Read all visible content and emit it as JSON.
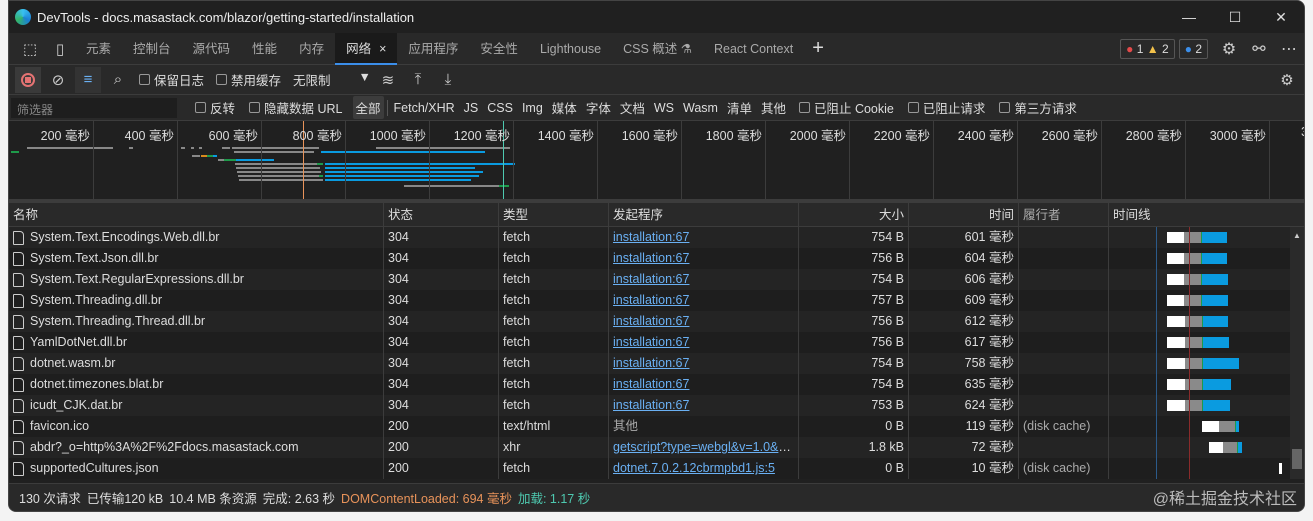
{
  "window": {
    "title": "DevTools - docs.masastack.com/blazor/getting-started/installation",
    "controls": [
      "—",
      "☐",
      "✕"
    ]
  },
  "tabs": [
    {
      "label": "元素"
    },
    {
      "label": "控制台"
    },
    {
      "label": "源代码"
    },
    {
      "label": "性能"
    },
    {
      "label": "内存"
    },
    {
      "label": "网络",
      "active": true
    },
    {
      "label": "应用程序"
    },
    {
      "label": "安全性"
    },
    {
      "label": "Lighthouse"
    },
    {
      "label": "CSS 概述 ⚗"
    },
    {
      "label": "React Context"
    }
  ],
  "tab_close": "×",
  "issues": {
    "errors": "1",
    "warnings": "2",
    "info": "2"
  },
  "toolbar": {
    "preserve_log": "保留日志",
    "disable_cache": "禁用缓存",
    "throttling": "无限制"
  },
  "filter": {
    "placeholder": "筛选器",
    "invert": "反转",
    "hide_data_urls": "隐藏数据 URL",
    "types": [
      "全部",
      "Fetch/XHR",
      "JS",
      "CSS",
      "Img",
      "媒体",
      "字体",
      "文档",
      "WS",
      "Wasm",
      "清单",
      "其他"
    ],
    "blocked_cookies": "已阻止 Cookie",
    "blocked_requests": "已阻止请求",
    "third_party": "第三方请求"
  },
  "overview": {
    "ticks": [
      "200 毫秒",
      "400 毫秒",
      "600 毫秒",
      "800 毫秒",
      "1000 毫秒",
      "1200 毫秒",
      "1400 毫秒",
      "1600 毫秒",
      "1800 毫秒",
      "2000 毫秒",
      "2200 毫秒",
      "2400 毫秒",
      "2600 毫秒",
      "2800 毫秒",
      "3000 毫秒",
      "3"
    ]
  },
  "columns": [
    "名称",
    "状态",
    "类型",
    "发起程序",
    "大小",
    "时间",
    "履行者",
    "时间线"
  ],
  "rows": [
    {
      "name": "System.Text.Encodings.Web.dll.br",
      "status": "304",
      "type": "fetch",
      "initiator": "installation:67",
      "size": "754 B",
      "time": "601",
      "unit": "毫秒",
      "fulfilled": ""
    },
    {
      "name": "System.Text.Json.dll.br",
      "status": "304",
      "type": "fetch",
      "initiator": "installation:67",
      "size": "756 B",
      "time": "604",
      "unit": "毫秒",
      "fulfilled": ""
    },
    {
      "name": "System.Text.RegularExpressions.dll.br",
      "status": "304",
      "type": "fetch",
      "initiator": "installation:67",
      "size": "754 B",
      "time": "606",
      "unit": "毫秒",
      "fulfilled": ""
    },
    {
      "name": "System.Threading.dll.br",
      "status": "304",
      "type": "fetch",
      "initiator": "installation:67",
      "size": "757 B",
      "time": "609",
      "unit": "毫秒",
      "fulfilled": ""
    },
    {
      "name": "System.Threading.Thread.dll.br",
      "status": "304",
      "type": "fetch",
      "initiator": "installation:67",
      "size": "756 B",
      "time": "612",
      "unit": "毫秒",
      "fulfilled": ""
    },
    {
      "name": "YamlDotNet.dll.br",
      "status": "304",
      "type": "fetch",
      "initiator": "installation:67",
      "size": "756 B",
      "time": "617",
      "unit": "毫秒",
      "fulfilled": ""
    },
    {
      "name": "dotnet.wasm.br",
      "status": "304",
      "type": "fetch",
      "initiator": "installation:67",
      "size": "754 B",
      "time": "758",
      "unit": "毫秒",
      "fulfilled": ""
    },
    {
      "name": "dotnet.timezones.blat.br",
      "status": "304",
      "type": "fetch",
      "initiator": "installation:67",
      "size": "754 B",
      "time": "635",
      "unit": "毫秒",
      "fulfilled": ""
    },
    {
      "name": "icudt_CJK.dat.br",
      "status": "304",
      "type": "fetch",
      "initiator": "installation:67",
      "size": "753 B",
      "time": "624",
      "unit": "毫秒",
      "fulfilled": ""
    },
    {
      "name": "favicon.ico",
      "status": "200",
      "type": "text/html",
      "initiator": "其他",
      "initiator_is_link": false,
      "size": "0 B",
      "time": "119",
      "unit": "毫秒",
      "fulfilled": "(disk cache)"
    },
    {
      "name": "abdr?_o=http%3A%2F%2Fdocs.masastack.com",
      "status": "200",
      "type": "xhr",
      "initiator": "getscript?type=webgl&v=1.0&a...",
      "size": "1.8 kB",
      "time": "72",
      "unit": "毫秒",
      "fulfilled": ""
    },
    {
      "name": "supportedCultures.json",
      "status": "200",
      "type": "fetch",
      "initiator": "dotnet.7.0.2.12cbrmpbd1.js:5",
      "size": "0 B",
      "time": "10",
      "unit": "毫秒",
      "fulfilled": "(disk cache)"
    }
  ],
  "status": {
    "requests": "130 次请求",
    "transferred": "已传输120 kB",
    "resources": "10.4 MB 条资源",
    "finish": "完成: 2.63 秒",
    "dcl": "DOMContentLoaded: 694 毫秒",
    "load": "加载: 1.17 秒"
  },
  "watermark": "@稀土掘金技术社区",
  "colors": {
    "accent": "#3b8eea",
    "dcl": "#e8935a",
    "load": "#4ec9b0",
    "download": "#0a9be0"
  }
}
